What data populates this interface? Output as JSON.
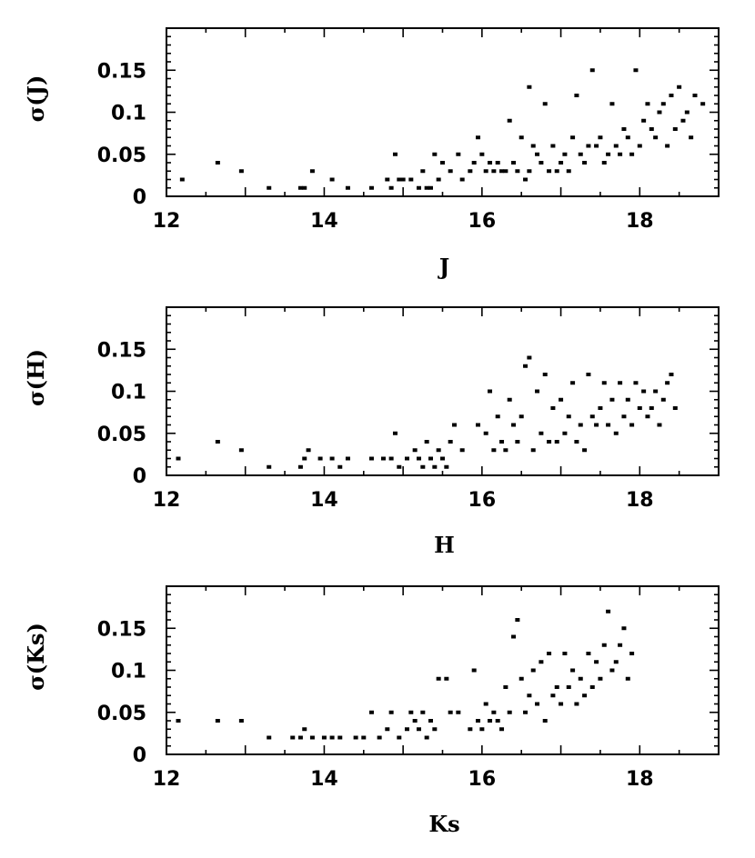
{
  "chart_data": [
    {
      "type": "scatter",
      "xlabel": "J",
      "ylabel": "σ(J)",
      "xlim": [
        12,
        19
      ],
      "ylim": [
        0,
        0.2
      ],
      "xticks": [
        "12",
        "14",
        "16",
        "18"
      ],
      "yticks": [
        "0",
        "0.05",
        "0.1",
        "0.15"
      ],
      "points": [
        [
          12.2,
          0.02
        ],
        [
          12.65,
          0.04
        ],
        [
          12.95,
          0.03
        ],
        [
          13.3,
          0.01
        ],
        [
          13.7,
          0.01
        ],
        [
          13.75,
          0.01
        ],
        [
          13.85,
          0.03
        ],
        [
          14.1,
          0.02
        ],
        [
          14.3,
          0.01
        ],
        [
          14.6,
          0.01
        ],
        [
          14.8,
          0.02
        ],
        [
          14.85,
          0.01
        ],
        [
          14.9,
          0.05
        ],
        [
          14.95,
          0.02
        ],
        [
          15.0,
          0.02
        ],
        [
          15.1,
          0.02
        ],
        [
          15.2,
          0.01
        ],
        [
          15.25,
          0.03
        ],
        [
          15.3,
          0.01
        ],
        [
          15.35,
          0.01
        ],
        [
          15.4,
          0.05
        ],
        [
          15.45,
          0.02
        ],
        [
          15.5,
          0.04
        ],
        [
          15.6,
          0.03
        ],
        [
          15.7,
          0.05
        ],
        [
          15.75,
          0.02
        ],
        [
          15.85,
          0.03
        ],
        [
          15.9,
          0.04
        ],
        [
          15.95,
          0.07
        ],
        [
          16.0,
          0.05
        ],
        [
          16.05,
          0.03
        ],
        [
          16.1,
          0.04
        ],
        [
          16.15,
          0.03
        ],
        [
          16.2,
          0.04
        ],
        [
          16.25,
          0.03
        ],
        [
          16.3,
          0.03
        ],
        [
          16.35,
          0.09
        ],
        [
          16.4,
          0.04
        ],
        [
          16.45,
          0.03
        ],
        [
          16.5,
          0.07
        ],
        [
          16.55,
          0.02
        ],
        [
          16.6,
          0.13
        ],
        [
          16.6,
          0.03
        ],
        [
          16.65,
          0.06
        ],
        [
          16.7,
          0.05
        ],
        [
          16.75,
          0.04
        ],
        [
          16.8,
          0.11
        ],
        [
          16.85,
          0.03
        ],
        [
          16.9,
          0.06
        ],
        [
          16.95,
          0.03
        ],
        [
          17.0,
          0.04
        ],
        [
          17.05,
          0.05
        ],
        [
          17.1,
          0.03
        ],
        [
          17.15,
          0.07
        ],
        [
          17.2,
          0.12
        ],
        [
          17.25,
          0.05
        ],
        [
          17.3,
          0.04
        ],
        [
          17.35,
          0.06
        ],
        [
          17.4,
          0.15
        ],
        [
          17.45,
          0.06
        ],
        [
          17.5,
          0.07
        ],
        [
          17.55,
          0.04
        ],
        [
          17.6,
          0.05
        ],
        [
          17.65,
          0.11
        ],
        [
          17.7,
          0.06
        ],
        [
          17.75,
          0.05
        ],
        [
          17.8,
          0.08
        ],
        [
          17.85,
          0.07
        ],
        [
          17.9,
          0.05
        ],
        [
          17.95,
          0.15
        ],
        [
          18.0,
          0.06
        ],
        [
          18.05,
          0.09
        ],
        [
          18.1,
          0.11
        ],
        [
          18.15,
          0.08
        ],
        [
          18.2,
          0.07
        ],
        [
          18.25,
          0.1
        ],
        [
          18.3,
          0.11
        ],
        [
          18.35,
          0.06
        ],
        [
          18.4,
          0.12
        ],
        [
          18.45,
          0.08
        ],
        [
          18.5,
          0.13
        ],
        [
          18.55,
          0.09
        ],
        [
          18.6,
          0.1
        ],
        [
          18.65,
          0.07
        ],
        [
          18.7,
          0.12
        ],
        [
          18.8,
          0.11
        ]
      ]
    },
    {
      "type": "scatter",
      "xlabel": "H",
      "ylabel": "σ(H)",
      "xlim": [
        12,
        19
      ],
      "ylim": [
        0,
        0.2
      ],
      "xticks": [
        "12",
        "14",
        "16",
        "18"
      ],
      "yticks": [
        "0",
        "0.05",
        "0.1",
        "0.15"
      ],
      "points": [
        [
          12.15,
          0.02
        ],
        [
          12.65,
          0.04
        ],
        [
          12.95,
          0.03
        ],
        [
          13.3,
          0.01
        ],
        [
          13.7,
          0.01
        ],
        [
          13.75,
          0.02
        ],
        [
          13.8,
          0.03
        ],
        [
          13.95,
          0.02
        ],
        [
          14.1,
          0.02
        ],
        [
          14.2,
          0.01
        ],
        [
          14.3,
          0.02
        ],
        [
          14.6,
          0.02
        ],
        [
          14.75,
          0.02
        ],
        [
          14.85,
          0.02
        ],
        [
          14.9,
          0.05
        ],
        [
          14.95,
          0.01
        ],
        [
          15.05,
          0.02
        ],
        [
          15.15,
          0.03
        ],
        [
          15.2,
          0.02
        ],
        [
          15.25,
          0.01
        ],
        [
          15.3,
          0.04
        ],
        [
          15.35,
          0.02
        ],
        [
          15.4,
          0.01
        ],
        [
          15.45,
          0.03
        ],
        [
          15.5,
          0.02
        ],
        [
          15.55,
          0.01
        ],
        [
          15.6,
          0.04
        ],
        [
          15.65,
          0.06
        ],
        [
          15.75,
          0.03
        ],
        [
          15.95,
          0.06
        ],
        [
          16.05,
          0.05
        ],
        [
          16.1,
          0.1
        ],
        [
          16.15,
          0.03
        ],
        [
          16.2,
          0.07
        ],
        [
          16.25,
          0.04
        ],
        [
          16.3,
          0.03
        ],
        [
          16.35,
          0.09
        ],
        [
          16.4,
          0.06
        ],
        [
          16.45,
          0.04
        ],
        [
          16.5,
          0.07
        ],
        [
          16.55,
          0.13
        ],
        [
          16.6,
          0.14
        ],
        [
          16.65,
          0.03
        ],
        [
          16.7,
          0.1
        ],
        [
          16.75,
          0.05
        ],
        [
          16.8,
          0.12
        ],
        [
          16.85,
          0.04
        ],
        [
          16.9,
          0.08
        ],
        [
          16.95,
          0.04
        ],
        [
          17.0,
          0.09
        ],
        [
          17.05,
          0.05
        ],
        [
          17.1,
          0.07
        ],
        [
          17.15,
          0.11
        ],
        [
          17.2,
          0.04
        ],
        [
          17.25,
          0.06
        ],
        [
          17.3,
          0.03
        ],
        [
          17.35,
          0.12
        ],
        [
          17.4,
          0.07
        ],
        [
          17.45,
          0.06
        ],
        [
          17.5,
          0.08
        ],
        [
          17.55,
          0.11
        ],
        [
          17.6,
          0.06
        ],
        [
          17.65,
          0.09
        ],
        [
          17.7,
          0.05
        ],
        [
          17.75,
          0.11
        ],
        [
          17.8,
          0.07
        ],
        [
          17.85,
          0.09
        ],
        [
          17.9,
          0.06
        ],
        [
          17.95,
          0.11
        ],
        [
          18.0,
          0.08
        ],
        [
          18.05,
          0.1
        ],
        [
          18.1,
          0.07
        ],
        [
          18.15,
          0.08
        ],
        [
          18.2,
          0.1
        ],
        [
          18.25,
          0.06
        ],
        [
          18.3,
          0.09
        ],
        [
          18.35,
          0.11
        ],
        [
          18.4,
          0.12
        ],
        [
          18.45,
          0.08
        ]
      ]
    },
    {
      "type": "scatter",
      "xlabel": "Ks",
      "ylabel": "σ(Ks)",
      "xlim": [
        12,
        19
      ],
      "ylim": [
        0,
        0.2
      ],
      "xticks": [
        "12",
        "14",
        "16",
        "18"
      ],
      "yticks": [
        "0",
        "0.05",
        "0.1",
        "0.15"
      ],
      "points": [
        [
          12.15,
          0.04
        ],
        [
          12.65,
          0.04
        ],
        [
          12.95,
          0.04
        ],
        [
          13.3,
          0.02
        ],
        [
          13.6,
          0.02
        ],
        [
          13.7,
          0.02
        ],
        [
          13.75,
          0.03
        ],
        [
          13.85,
          0.02
        ],
        [
          14.0,
          0.02
        ],
        [
          14.1,
          0.02
        ],
        [
          14.2,
          0.02
        ],
        [
          14.4,
          0.02
        ],
        [
          14.5,
          0.02
        ],
        [
          14.6,
          0.05
        ],
        [
          14.7,
          0.02
        ],
        [
          14.8,
          0.03
        ],
        [
          14.85,
          0.05
        ],
        [
          14.95,
          0.02
        ],
        [
          15.05,
          0.03
        ],
        [
          15.1,
          0.05
        ],
        [
          15.15,
          0.04
        ],
        [
          15.2,
          0.03
        ],
        [
          15.25,
          0.05
        ],
        [
          15.3,
          0.02
        ],
        [
          15.35,
          0.04
        ],
        [
          15.4,
          0.03
        ],
        [
          15.45,
          0.09
        ],
        [
          15.55,
          0.09
        ],
        [
          15.6,
          0.05
        ],
        [
          15.7,
          0.05
        ],
        [
          15.85,
          0.03
        ],
        [
          15.9,
          0.1
        ],
        [
          15.95,
          0.04
        ],
        [
          16.0,
          0.03
        ],
        [
          16.05,
          0.06
        ],
        [
          16.1,
          0.04
        ],
        [
          16.15,
          0.05
        ],
        [
          16.2,
          0.04
        ],
        [
          16.25,
          0.03
        ],
        [
          16.3,
          0.08
        ],
        [
          16.35,
          0.05
        ],
        [
          16.4,
          0.14
        ],
        [
          16.45,
          0.16
        ],
        [
          16.5,
          0.09
        ],
        [
          16.55,
          0.05
        ],
        [
          16.6,
          0.07
        ],
        [
          16.65,
          0.1
        ],
        [
          16.7,
          0.06
        ],
        [
          16.75,
          0.11
        ],
        [
          16.8,
          0.04
        ],
        [
          16.85,
          0.12
        ],
        [
          16.9,
          0.07
        ],
        [
          16.95,
          0.08
        ],
        [
          17.0,
          0.06
        ],
        [
          17.05,
          0.12
        ],
        [
          17.1,
          0.08
        ],
        [
          17.15,
          0.1
        ],
        [
          17.2,
          0.06
        ],
        [
          17.25,
          0.09
        ],
        [
          17.3,
          0.07
        ],
        [
          17.35,
          0.12
        ],
        [
          17.4,
          0.08
        ],
        [
          17.45,
          0.11
        ],
        [
          17.5,
          0.09
        ],
        [
          17.55,
          0.13
        ],
        [
          17.6,
          0.17
        ],
        [
          17.65,
          0.1
        ],
        [
          17.7,
          0.11
        ],
        [
          17.75,
          0.13
        ],
        [
          17.8,
          0.15
        ],
        [
          17.85,
          0.09
        ],
        [
          17.9,
          0.12
        ]
      ]
    }
  ]
}
